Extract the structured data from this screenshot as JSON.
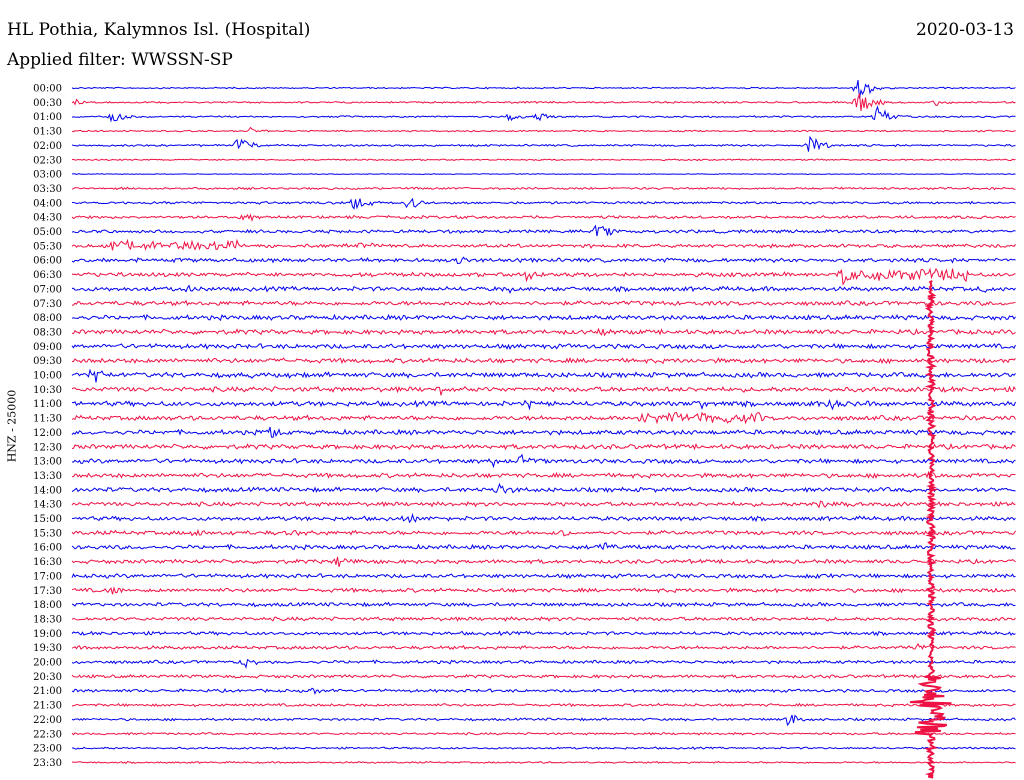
{
  "header": {
    "station": "HL Pothia, Kalymnos Isl. (Hospital)",
    "date": "2020-03-13",
    "filter": "Applied filter: WWSSN-SP"
  },
  "chart_data": {
    "type": "line",
    "title": "HL Pothia, Kalymnos Isl. (Hospital)",
    "subtitle": "Applied filter: WWSSN-SP",
    "ylabel": "HNZ - 25000",
    "xlabel": "",
    "grid": false,
    "legend": "none",
    "colors": [
      "#0000ee",
      "#ee1144"
    ],
    "rows": [
      "00:00",
      "00:30",
      "01:00",
      "01:30",
      "02:00",
      "02:30",
      "03:00",
      "03:30",
      "04:00",
      "04:30",
      "05:00",
      "05:30",
      "06:00",
      "06:30",
      "07:00",
      "07:30",
      "08:00",
      "08:30",
      "09:00",
      "09:30",
      "10:00",
      "10:30",
      "11:00",
      "11:30",
      "12:00",
      "12:30",
      "13:00",
      "13:30",
      "14:00",
      "14:30",
      "15:00",
      "15:30",
      "16:00",
      "16:30",
      "17:00",
      "17:30",
      "18:00",
      "18:30",
      "19:00",
      "19:30",
      "20:00",
      "20:30",
      "21:00",
      "21:30",
      "22:00",
      "22:30",
      "23:00",
      "23:30"
    ],
    "noise_levels": [
      0.6,
      0.7,
      0.7,
      0.6,
      0.8,
      0.6,
      0.3,
      0.9,
      1.0,
      1.2,
      1.3,
      1.5,
      1.6,
      1.7,
      1.8,
      1.8,
      1.9,
      1.9,
      1.9,
      1.9,
      2.0,
      2.0,
      2.0,
      1.9,
      1.9,
      1.9,
      1.8,
      1.8,
      1.8,
      1.7,
      1.7,
      1.7,
      1.7,
      1.6,
      1.6,
      1.6,
      1.5,
      1.5,
      1.4,
      1.4,
      1.3,
      1.3,
      1.2,
      1.1,
      1.0,
      0.9,
      0.8,
      0.7
    ],
    "events": [
      {
        "row": 0,
        "minute": 25,
        "amplitude": 16
      },
      {
        "row": 1,
        "minute": 0,
        "amplitude": 6
      },
      {
        "row": 1,
        "minute": 25,
        "amplitude": 18
      },
      {
        "row": 1,
        "minute": 27.5,
        "amplitude": 5
      },
      {
        "row": 2,
        "minute": 1.3,
        "amplitude": 7
      },
      {
        "row": 2,
        "minute": 13.9,
        "amplitude": 6
      },
      {
        "row": 2,
        "minute": 14.8,
        "amplitude": 6
      },
      {
        "row": 2,
        "minute": 25.6,
        "amplitude": 14
      },
      {
        "row": 3,
        "minute": 5.7,
        "amplitude": 5
      },
      {
        "row": 4,
        "minute": 5.3,
        "amplitude": 10
      },
      {
        "row": 4,
        "minute": 23.5,
        "amplitude": 12
      },
      {
        "row": 8,
        "minute": 9.0,
        "amplitude": 11
      },
      {
        "row": 8,
        "minute": 10.7,
        "amplitude": 9
      },
      {
        "row": 9,
        "minute": 5.4,
        "amplitude": 10
      },
      {
        "row": 10,
        "minute": 16.7,
        "amplitude": 11
      },
      {
        "row": 11,
        "minute": 2.4,
        "amplitude": 5
      },
      {
        "row": 11,
        "minute": 9.2,
        "amplitude": 7
      },
      {
        "row": 12,
        "minute": 12.3,
        "amplitude": 7
      },
      {
        "row": 13,
        "minute": 14.5,
        "amplitude": 10
      },
      {
        "row": 13,
        "minute": 24.5,
        "amplitude": 16
      },
      {
        "row": 14,
        "minute": 3.7,
        "amplitude": 6
      },
      {
        "row": 14,
        "minute": 13.8,
        "amplitude": 6
      },
      {
        "row": 14,
        "minute": 29.0,
        "amplitude": 7
      },
      {
        "row": 17,
        "minute": 16.8,
        "amplitude": 7
      },
      {
        "row": 20,
        "minute": 0.7,
        "amplitude": 11
      },
      {
        "row": 20,
        "minute": 5.7,
        "amplitude": 7
      },
      {
        "row": 21,
        "minute": 11.7,
        "amplitude": 7
      },
      {
        "row": 22,
        "minute": 14.5,
        "amplitude": 7
      },
      {
        "row": 22,
        "minute": 20.0,
        "amplitude": 7
      },
      {
        "row": 22,
        "minute": 24.0,
        "amplitude": 9
      },
      {
        "row": 23,
        "minute": 19.1,
        "amplitude": 6
      },
      {
        "row": 24,
        "minute": 6.3,
        "amplitude": 10
      },
      {
        "row": 26,
        "minute": 13.4,
        "amplitude": 7
      },
      {
        "row": 26,
        "minute": 14.3,
        "amplitude": 8
      },
      {
        "row": 27,
        "minute": 27.3,
        "amplitude": 7
      },
      {
        "row": 28,
        "minute": 13.6,
        "amplitude": 10
      },
      {
        "row": 29,
        "minute": 23.8,
        "amplitude": 7
      },
      {
        "row": 30,
        "minute": 10.8,
        "amplitude": 7
      },
      {
        "row": 31,
        "minute": 3.9,
        "amplitude": 8
      },
      {
        "row": 31,
        "minute": 6.9,
        "amplitude": 7
      },
      {
        "row": 31,
        "minute": 15.6,
        "amplitude": 6
      },
      {
        "row": 32,
        "minute": 16.9,
        "amplitude": 10
      },
      {
        "row": 33,
        "minute": 8.5,
        "amplitude": 9
      },
      {
        "row": 34,
        "minute": 23.5,
        "amplitude": 6
      },
      {
        "row": 35,
        "minute": 1.3,
        "amplitude": 6
      },
      {
        "row": 39,
        "minute": 26.9,
        "amplitude": 6
      },
      {
        "row": 40,
        "minute": 5.5,
        "amplitude": 8
      },
      {
        "row": 42,
        "minute": 7.6,
        "amplitude": 5
      },
      {
        "row": 44,
        "minute": 22.8,
        "amplitude": 9
      }
    ],
    "long_events": [
      {
        "row": 11,
        "start_minute": 1.2,
        "end_minute": 5.3,
        "amplitude": 6
      },
      {
        "row": 13,
        "start_minute": 25.0,
        "end_minute": 28.5,
        "amplitude": 7
      },
      {
        "row": 23,
        "start_minute": 18.0,
        "end_minute": 22.0,
        "amplitude": 6
      }
    ],
    "mainshock": {
      "start_row": 14,
      "minute": 27.3,
      "end_row": 47,
      "coda_row": 43,
      "coda_amplitude": 22
    }
  }
}
